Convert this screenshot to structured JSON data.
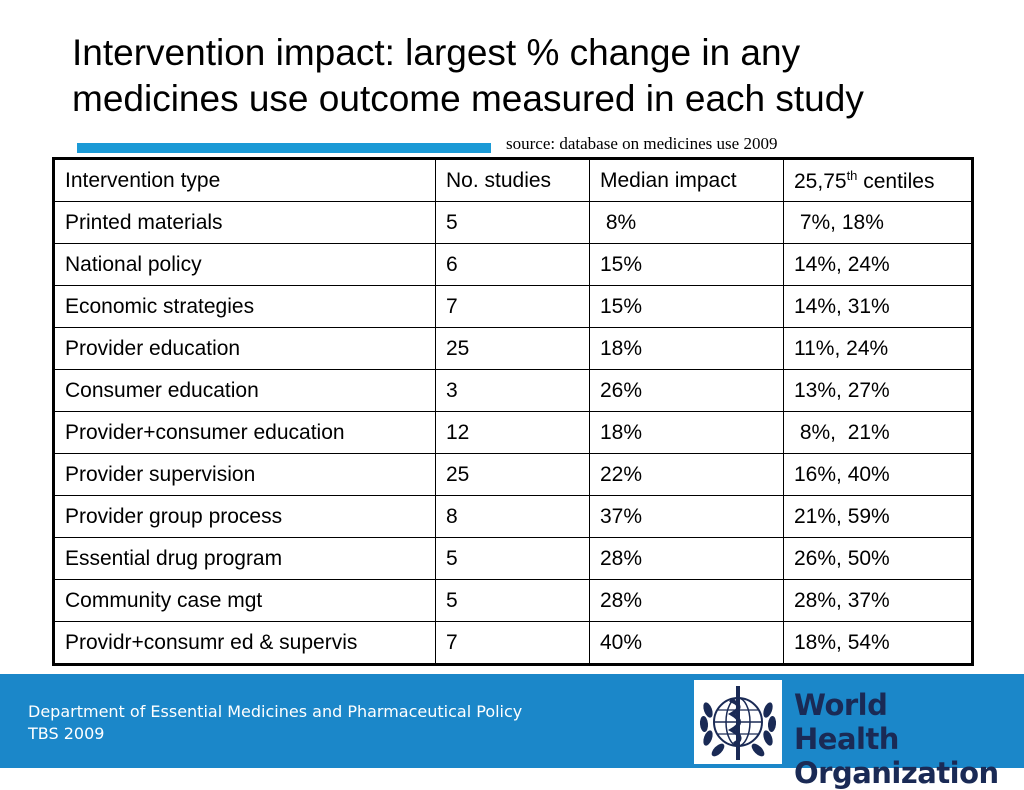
{
  "slide": {
    "title_line1": "Intervention impact: largest % change in any",
    "title_line2": "medicines use outcome measured in each study",
    "source": "source: database on medicines use 2009"
  },
  "table": {
    "headers": {
      "type": "Intervention type",
      "studies": "No. studies",
      "impact": "Median impact",
      "centiles_base": "25,75",
      "centiles_sup": "th",
      "centiles_tail": " centiles"
    },
    "rows": [
      {
        "type": "Printed materials",
        "studies": "5",
        "impact": " 8%",
        "centiles": " 7%, 18%"
      },
      {
        "type": "National policy",
        "studies": "6",
        "impact": "15%",
        "centiles": "14%, 24%"
      },
      {
        "type": "Economic strategies",
        "studies": "7",
        "impact": "15%",
        "centiles": "14%, 31%"
      },
      {
        "type": "Provider education",
        "studies": "25",
        "impact": "18%",
        "centiles": "11%, 24%"
      },
      {
        "type": "Consumer education",
        "studies": "3",
        "impact": "26%",
        "centiles": "13%, 27%"
      },
      {
        "type": "Provider+consumer education",
        "studies": "12",
        "impact": "18%",
        "centiles": " 8%,  21%"
      },
      {
        "type": "Provider supervision",
        "studies": "25",
        "impact": "22%",
        "centiles": "16%, 40%"
      },
      {
        "type": "Provider group process",
        "studies": "8",
        "impact": "37%",
        "centiles": "21%, 59%"
      },
      {
        "type": "Essential drug program",
        "studies": "5",
        "impact": "28%",
        "centiles": "26%, 50%"
      },
      {
        "type": "Community case mgt",
        "studies": "5",
        "impact": "28%",
        "centiles": "28%, 37%"
      },
      {
        "type": "Providr+consumr ed & supervis",
        "studies": "7",
        "impact": "40%",
        "centiles": "18%, 54%"
      }
    ]
  },
  "footer": {
    "department": "Department of Essential Medicines and Pharmaceutical Policy",
    "tag": "TBS 2009",
    "logo_line1": "World Health",
    "logo_line2": "Organization"
  },
  "colors": {
    "accent_bar": "#1b9ad6",
    "footer_bg": "#1b87c9",
    "logo_text": "#1a2a55"
  },
  "icons": {
    "logo": "who-emblem-icon"
  }
}
